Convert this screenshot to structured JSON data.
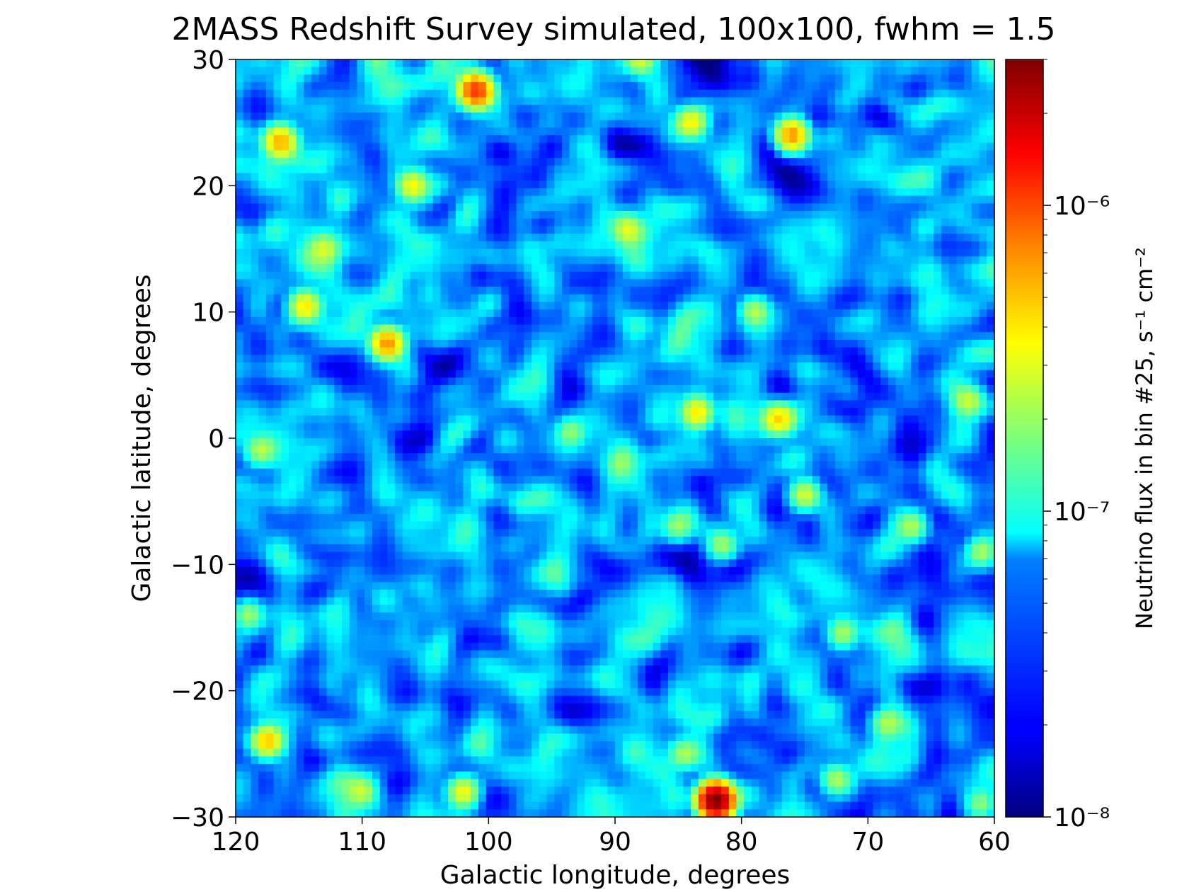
{
  "chart_data": {
    "type": "heatmap",
    "title": "2MASS Redshift Survey simulated, 100x100, fwhm = 1.5",
    "xlabel": "Galactic longitude, degrees",
    "ylabel": "Galactic latitude, degrees",
    "xlim": [
      120,
      60
    ],
    "ylim": [
      -30,
      30
    ],
    "grid_resolution": [
      100,
      100
    ],
    "x_ticks": [
      120,
      110,
      100,
      90,
      80,
      70,
      60
    ],
    "y_ticks": [
      -30,
      -20,
      -10,
      0,
      10,
      20,
      30
    ],
    "x_tick_labels": [
      "120",
      "110",
      "100",
      "90",
      "80",
      "70",
      "60"
    ],
    "y_tick_labels": [
      "−30",
      "−20",
      "−10",
      "0",
      "10",
      "20",
      "30"
    ],
    "colorbar": {
      "label": "Neutrino flux in bin #25, s⁻¹ cm⁻²",
      "scale": "log",
      "colormap": "jet",
      "range": [
        1e-08,
        3e-06
      ],
      "ticks": [
        1e-08,
        1e-07,
        1e-06
      ],
      "tick_labels": [
        "10⁻⁸",
        "10⁻⁷",
        "10⁻⁶"
      ]
    },
    "peak_sources": [
      {
        "l": 82.0,
        "b": -28.7,
        "flux": 3e-06
      },
      {
        "l": 101.0,
        "b": 27.5,
        "flux": 1e-06
      },
      {
        "l": 108.0,
        "b": 7.5,
        "flux": 6e-07
      },
      {
        "l": 76.0,
        "b": 24.0,
        "flux": 6e-07
      },
      {
        "l": 116.5,
        "b": 23.5,
        "flux": 4.5e-07
      },
      {
        "l": 117.5,
        "b": -24.0,
        "flux": 4.5e-07
      },
      {
        "l": 114.5,
        "b": 10.5,
        "flux": 3.5e-07
      },
      {
        "l": 83.5,
        "b": 2.0,
        "flux": 3.5e-07
      },
      {
        "l": 77.0,
        "b": 1.5,
        "flux": 3.5e-07
      },
      {
        "l": 106.0,
        "b": 20.0,
        "flux": 3.2e-07
      },
      {
        "l": 84.0,
        "b": 25.0,
        "flux": 3e-07
      },
      {
        "l": 102.0,
        "b": -28.0,
        "flux": 3e-07
      },
      {
        "l": 75.0,
        "b": -4.5,
        "flux": 2.5e-07
      },
      {
        "l": 89.0,
        "b": 16.5,
        "flux": 2.5e-07
      },
      {
        "l": 88.0,
        "b": 30.0,
        "flux": 2.5e-07
      },
      {
        "l": 118.0,
        "b": -1.0,
        "flux": 2e-07
      },
      {
        "l": 113.0,
        "b": 15.0,
        "flux": 2e-07
      },
      {
        "l": 79.0,
        "b": 10.0,
        "flux": 2e-07
      },
      {
        "l": 81.5,
        "b": -8.5,
        "flux": 1.8e-07
      },
      {
        "l": 66.5,
        "b": -7.0,
        "flux": 1.8e-07
      },
      {
        "l": 85.0,
        "b": -7.0,
        "flux": 1.5e-07
      },
      {
        "l": 119.0,
        "b": -14.0,
        "flux": 1.8e-07
      },
      {
        "l": 72.0,
        "b": -15.5,
        "flux": 1.8e-07
      },
      {
        "l": 68.5,
        "b": -22.5,
        "flux": 1.8e-07
      },
      {
        "l": 72.5,
        "b": -27.0,
        "flux": 1.8e-07
      },
      {
        "l": 61.0,
        "b": -9.0,
        "flux": 1.8e-07
      },
      {
        "l": 62.0,
        "b": 3.0,
        "flux": 1.8e-07
      },
      {
        "l": 93.5,
        "b": 0.5,
        "flux": 1.5e-07
      },
      {
        "l": 84.5,
        "b": -25.0,
        "flux": 1.8e-07
      },
      {
        "l": 110.0,
        "b": -28.0,
        "flux": 1.5e-07
      },
      {
        "l": 61.0,
        "b": -29.0,
        "flux": 1.5e-07
      }
    ]
  }
}
